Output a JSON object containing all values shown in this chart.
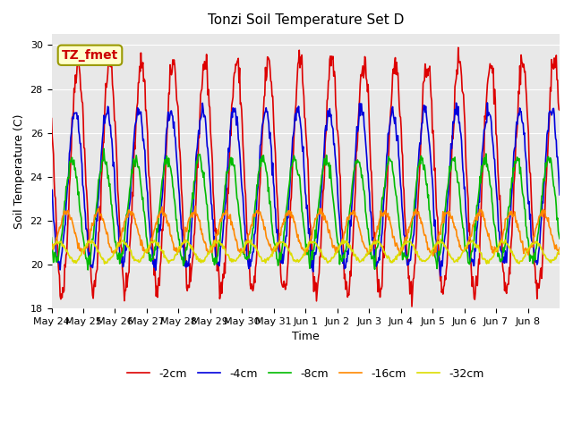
{
  "title": "Tonzi Soil Temperature Set D",
  "xlabel": "Time",
  "ylabel": "Soil Temperature (C)",
  "ylim": [
    18,
    30.5
  ],
  "yticks": [
    18,
    20,
    22,
    24,
    26,
    28,
    30
  ],
  "legend_labels": [
    "-2cm",
    "-4cm",
    "-8cm",
    "-16cm",
    "-32cm"
  ],
  "line_colors": [
    "#dd0000",
    "#0000dd",
    "#00bb00",
    "#ff8800",
    "#dddd00"
  ],
  "line_widths": [
    1.2,
    1.2,
    1.2,
    1.2,
    1.2
  ],
  "bg_color": "#e8e8e8",
  "annotation_text": "TZ_fmet",
  "annotation_color": "#cc0000",
  "annotation_bg": "#ffffcc",
  "annotation_border": "#999900",
  "x_tick_labels": [
    "May 24",
    "May 25",
    "May 26",
    "May 27",
    "May 28",
    "May 29",
    "May 30",
    "May 31",
    "Jun 1",
    "Jun 2",
    "Jun 3",
    "Jun 4",
    "Jun 5",
    "Jun 6",
    "Jun 7",
    "Jun 8"
  ],
  "n_days": 16,
  "points_per_day": 48,
  "series_params": [
    {
      "depth": -2,
      "base": 24.0,
      "amp": 5.2,
      "phase": 0.0,
      "noise": 0.3
    },
    {
      "depth": -4,
      "base": 23.5,
      "amp": 3.5,
      "phase": 0.08,
      "noise": 0.2
    },
    {
      "depth": -8,
      "base": 22.5,
      "amp": 2.3,
      "phase": 0.18,
      "noise": 0.15
    },
    {
      "depth": -16,
      "base": 21.5,
      "amp": 0.9,
      "phase": 0.35,
      "noise": 0.1
    },
    {
      "depth": -32,
      "base": 20.6,
      "amp": 0.45,
      "phase": 0.6,
      "noise": 0.05
    }
  ]
}
